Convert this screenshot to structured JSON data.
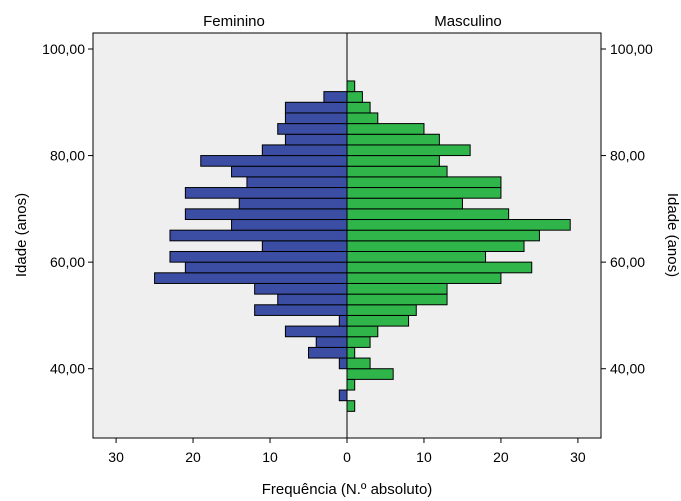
{
  "chart_data": {
    "type": "bar",
    "orientation": "horizontal-population-pyramid",
    "panels": [
      "Feminino",
      "Masculino"
    ],
    "xlabel": "Frequência (N.º absoluto)",
    "ylabel_left": "Idade (anos)",
    "ylabel_right": "Idade (anos)",
    "x_ticks": [
      "30",
      "20",
      "10",
      "0",
      "10",
      "20",
      "30"
    ],
    "x_tick_values": [
      -30,
      -20,
      -10,
      0,
      10,
      20,
      30
    ],
    "y_ticks": [
      "40,00",
      "60,00",
      "80,00",
      "100,00"
    ],
    "y_tick_values": [
      40,
      60,
      80,
      100
    ],
    "xlim": [
      -33,
      33
    ],
    "ylim": [
      27,
      103
    ],
    "bin_width": 2,
    "ages": [
      33,
      35,
      37,
      39,
      41,
      43,
      45,
      47,
      49,
      51,
      53,
      55,
      57,
      59,
      61,
      63,
      65,
      67,
      69,
      71,
      73,
      75,
      77,
      79,
      81,
      83,
      85,
      87,
      89,
      91,
      93
    ],
    "series": [
      {
        "name": "Feminino",
        "color": "#3b4ea3",
        "values": [
          0,
          1,
          0,
          0,
          1,
          5,
          4,
          8,
          1,
          12,
          9,
          12,
          25,
          21,
          23,
          11,
          23,
          15,
          21,
          14,
          21,
          13,
          15,
          19,
          11,
          8,
          9,
          8,
          8,
          3,
          0
        ]
      },
      {
        "name": "Masculino",
        "color": "#2fb54a",
        "values": [
          1,
          0,
          1,
          6,
          3,
          1,
          3,
          4,
          8,
          9,
          13,
          13,
          20,
          24,
          18,
          23,
          25,
          29,
          21,
          15,
          20,
          20,
          13,
          12,
          16,
          12,
          10,
          4,
          3,
          2,
          1
        ]
      }
    ],
    "plot_background": "#efefef",
    "grid": false,
    "legend": "none"
  }
}
